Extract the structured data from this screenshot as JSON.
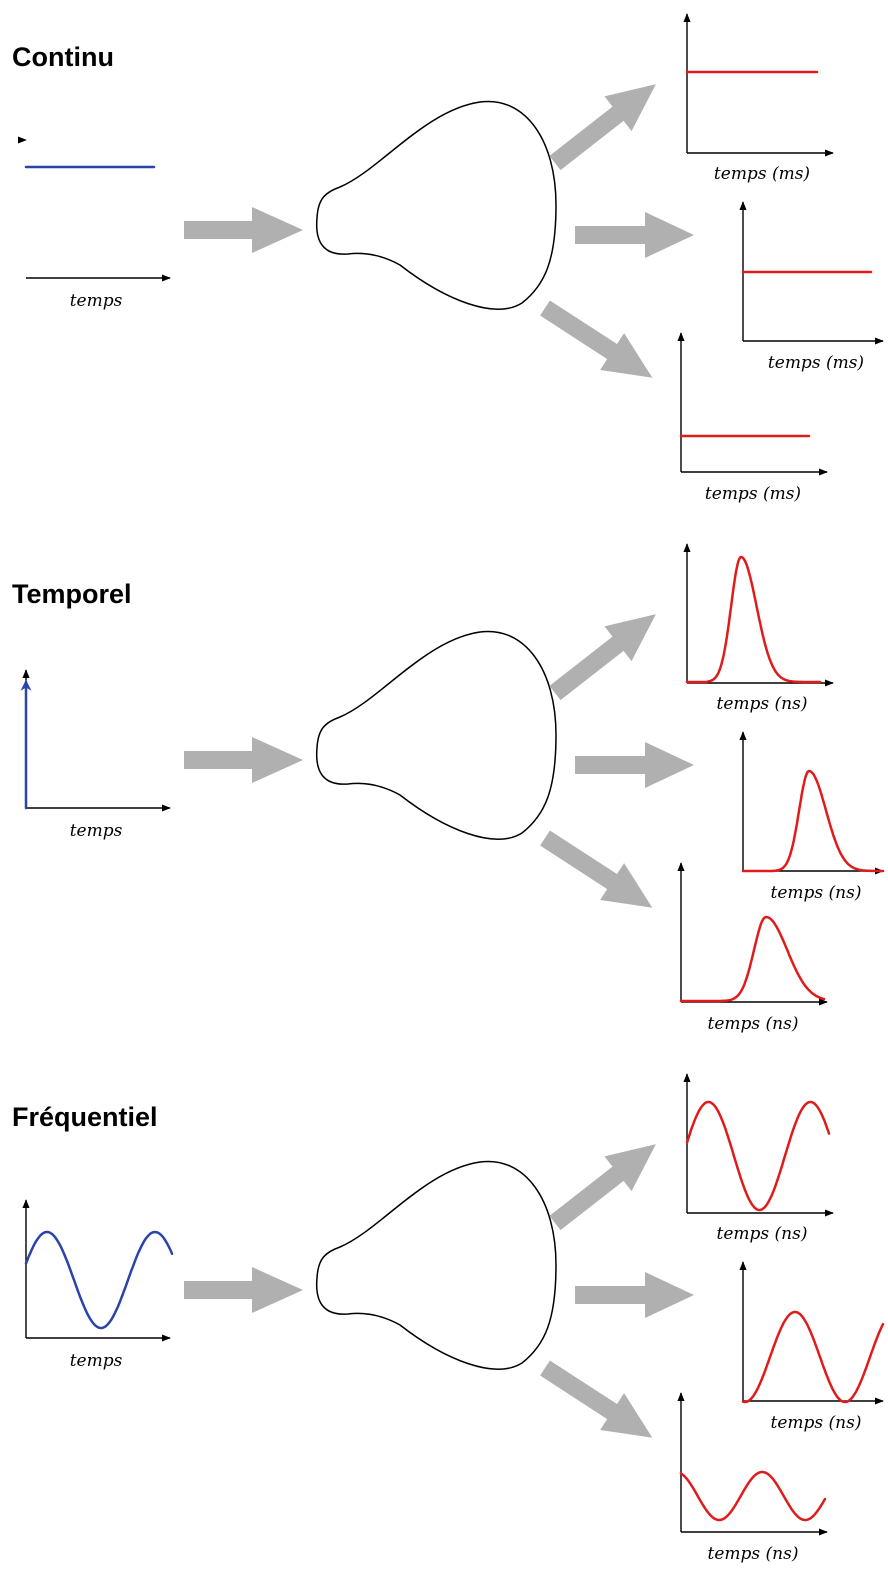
{
  "colors": {
    "input": "#2a44a8",
    "output": "#e01b1b",
    "arrow": "#b0b0b0",
    "axis": "#000000"
  },
  "sections": [
    {
      "title": "Continu",
      "signal": "constant",
      "input_axis_label": "temps",
      "output_axis_labels": [
        "temps (ms)",
        "temps (ms)",
        "temps (ms)"
      ]
    },
    {
      "title": "Temporel",
      "signal": "impulse",
      "input_axis_label": "temps",
      "output_axis_labels": [
        "temps (ns)",
        "temps (ns)",
        "temps (ns)"
      ]
    },
    {
      "title": "Fréquentiel",
      "signal": "sine",
      "input_axis_label": "temps",
      "output_axis_labels": [
        "temps (ns)",
        "temps (ns)",
        "temps (ns)"
      ]
    }
  ]
}
